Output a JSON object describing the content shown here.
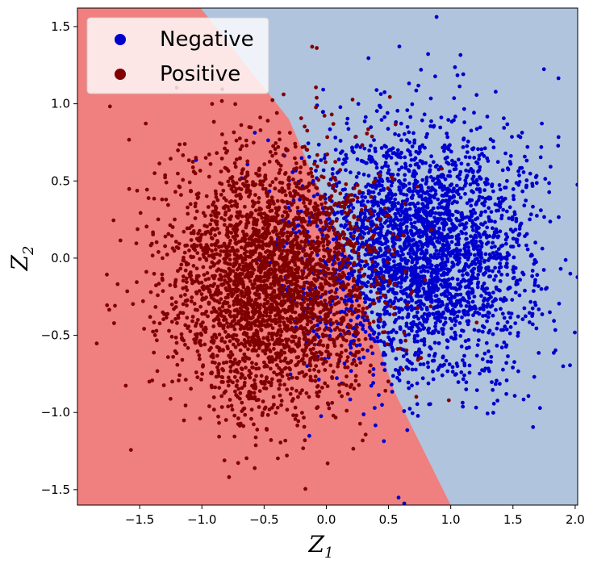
{
  "chart_data": {
    "type": "scatter",
    "title": "",
    "xlabel": {
      "base": "Z",
      "sub": "1"
    },
    "ylabel": {
      "base": "Z",
      "sub": "2"
    },
    "xlim": [
      -2.0,
      2.02
    ],
    "ylim": [
      -1.6,
      1.62
    ],
    "xticks": [
      -1.5,
      -1.0,
      -0.5,
      0.0,
      0.5,
      1.0,
      1.5,
      2.0
    ],
    "xtick_labels": [
      "−1.5",
      "−1.0",
      "−0.5",
      "0.0",
      "0.5",
      "1.0",
      "1.5",
      "2.0"
    ],
    "yticks": [
      -1.5,
      -1.0,
      -0.5,
      0.0,
      0.5,
      1.0,
      1.5
    ],
    "ytick_labels": [
      "−1.5",
      "−1.0",
      "−0.5",
      "0.0",
      "0.5",
      "1.0",
      "1.5"
    ],
    "grid": false,
    "legend_position": "top-left",
    "decision_region": {
      "boundary": [
        [
          -1.01,
          1.62
        ],
        [
          -0.3,
          0.9
        ],
        [
          0.18,
          0.0
        ],
        [
          0.55,
          -0.87
        ],
        [
          1.0,
          -1.6
        ]
      ],
      "positive_side_color": "#f08080",
      "negative_side_color": "#b0c4de"
    },
    "series": [
      {
        "name": "Negative",
        "color": "#0000cd",
        "description": "dense cluster centered near (0.75, 0.05), spread ~0.45 in x and ~0.4 in y",
        "center": [
          0.75,
          0.05
        ],
        "spread": [
          0.45,
          0.4
        ],
        "count": 3000
      },
      {
        "name": "Positive",
        "color": "#800000",
        "description": "dense cluster centered near (-0.45, -0.15), spread ~0.42 in x and ~0.42 in y",
        "center": [
          -0.45,
          -0.15
        ],
        "spread": [
          0.42,
          0.42
        ],
        "count": 3000
      }
    ]
  }
}
